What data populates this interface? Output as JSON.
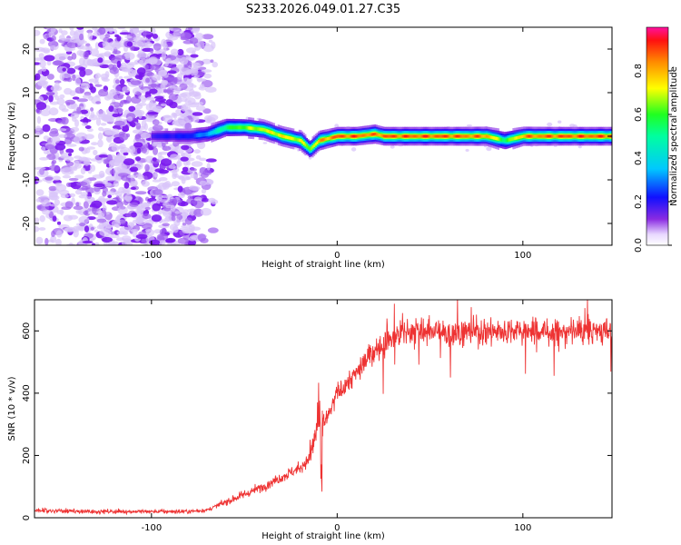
{
  "title": "S233.2026.049.01.27.C35",
  "chart_data": [
    {
      "type": "heatmap",
      "xlabel": "Height of straight line (km)",
      "ylabel": "Frequency (Hz)",
      "xlim": [
        -163,
        148
      ],
      "ylim": [
        -25,
        25
      ],
      "x_ticks": [
        -100,
        0,
        100
      ],
      "y_ticks": [
        -20,
        -10,
        0,
        10,
        20
      ],
      "colorbar": {
        "label": "Normalized spectral amplitude",
        "range": [
          0,
          1
        ],
        "ticks": [
          0.0,
          0.2,
          0.4,
          0.6,
          0.8
        ]
      },
      "noise_region_x": [
        -163,
        -65
      ],
      "signal_track": {
        "x": [
          -100,
          -80,
          -70,
          -60,
          -50,
          -40,
          -30,
          -20,
          -15,
          -10,
          0,
          10,
          20,
          25,
          40,
          60,
          80,
          90,
          100,
          120,
          148
        ],
        "frequency": [
          0,
          0,
          0.5,
          2,
          2,
          1.5,
          0,
          -1,
          -3,
          -1,
          0,
          0,
          0.5,
          0,
          0,
          0,
          0,
          -1,
          0,
          0,
          0
        ],
        "amplitude": [
          0.2,
          0.25,
          0.35,
          0.6,
          0.7,
          0.75,
          0.8,
          0.75,
          0.7,
          0.85,
          0.95,
          0.95,
          0.9,
          0.95,
          0.95,
          0.95,
          0.9,
          0.6,
          0.9,
          0.95,
          0.95
        ]
      }
    },
    {
      "type": "line",
      "xlabel": "Height of straight line (km)",
      "ylabel": "SNR (10 * v/v)",
      "xlim": [
        -163,
        148
      ],
      "ylim": [
        0,
        700
      ],
      "x_ticks": [
        -100,
        0,
        100
      ],
      "y_ticks": [
        0,
        200,
        400,
        600
      ],
      "series": [
        {
          "name": "SNR",
          "color": "#ee3333",
          "x": [
            -163,
            -140,
            -120,
            -100,
            -80,
            -70,
            -60,
            -50,
            -40,
            -30,
            -20,
            -15,
            -10,
            -5,
            0,
            10,
            20,
            30,
            40,
            60,
            80,
            100,
            120,
            148
          ],
          "values": [
            25,
            20,
            20,
            20,
            20,
            25,
            50,
            75,
            100,
            130,
            160,
            190,
            300,
            320,
            400,
            460,
            540,
            580,
            600,
            595,
            600,
            600,
            595,
            600
          ]
        }
      ]
    }
  ]
}
